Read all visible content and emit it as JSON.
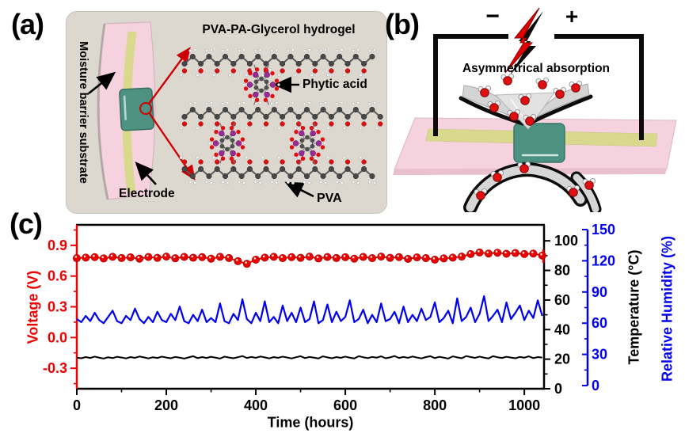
{
  "panel_a": {
    "label": "(a)",
    "title": "PVA-PA-Glycerol hydrogel",
    "substrate_label": "Moisture barrier substrate",
    "electrode_label": "Electrode",
    "phytic_label": "Phytic acid",
    "pva_label": "PVA"
  },
  "panel_b": {
    "label": "(b)",
    "minus": "−",
    "plus": "+",
    "absorption_label": "Asymmetrical absorption"
  },
  "panel_c": {
    "label": "(c)"
  },
  "colors": {
    "voltage_red": "#ee0000",
    "humidity_blue": "#0000ee",
    "temperature_black": "#000000",
    "substrate_pink": "#f6d2de",
    "electrode_yellow": "#d9d98e",
    "hydrogel_teal": "#4d9183",
    "panel_box_gray": "#dcd8d0",
    "arrow_red": "#cc0000"
  },
  "chart_data": {
    "type": "line",
    "title": "",
    "xlabel": "Time (hours)",
    "x_ticks": [
      0,
      200,
      400,
      600,
      800,
      1000
    ],
    "x_minor_ticks": [
      100,
      300,
      500,
      700,
      900
    ],
    "xlim": [
      0,
      1044
    ],
    "legend": "none",
    "grid": false,
    "axes": {
      "voltage": {
        "label": "Voltage (V)",
        "color": "#ee0000",
        "side": "left",
        "ticks": [
          -0.3,
          0.0,
          0.3,
          0.6,
          0.9
        ],
        "minor_ticks": [
          -0.45,
          -0.15,
          0.15,
          0.45,
          0.75,
          1.05
        ],
        "range": [
          -0.5,
          1.1
        ]
      },
      "temperature": {
        "label": "Temperature (°C)",
        "color": "#000000",
        "side": "right",
        "ticks": [
          0,
          20,
          40,
          60,
          80,
          100
        ],
        "minor_ticks": [
          10,
          30,
          50,
          70,
          90
        ],
        "range": [
          0,
          110.8
        ]
      },
      "humidity": {
        "label": "Relative Humidity (%)",
        "color": "#0000ee",
        "side": "right-offset",
        "ticks": [
          0,
          30,
          60,
          90,
          120,
          150
        ],
        "minor_ticks": [
          15,
          45,
          75,
          105,
          135
        ],
        "range": [
          0,
          150
        ]
      }
    },
    "series": [
      {
        "name": "Voltage",
        "axis": "voltage",
        "color": "#ee0000",
        "style": "scatter-line",
        "x_start": 0,
        "x_step": 20,
        "values": [
          0.775,
          0.78,
          0.785,
          0.772,
          0.788,
          0.776,
          0.783,
          0.77,
          0.786,
          0.778,
          0.79,
          0.774,
          0.787,
          0.779,
          0.785,
          0.77,
          0.788,
          0.776,
          0.745,
          0.72,
          0.76,
          0.78,
          0.788,
          0.775,
          0.785,
          0.778,
          0.79,
          0.772,
          0.786,
          0.776,
          0.784,
          0.77,
          0.787,
          0.775,
          0.79,
          0.778,
          0.785,
          0.768,
          0.782,
          0.775,
          0.76,
          0.772,
          0.78,
          0.79,
          0.815,
          0.83,
          0.82,
          0.828,
          0.818,
          0.825,
          0.815,
          0.82,
          0.8
        ],
        "end_bar": {
          "x": 1044,
          "low": 0.73,
          "high": 0.86
        }
      },
      {
        "name": "Relative Humidity",
        "axis": "humidity",
        "color": "#0000ee",
        "style": "line",
        "x_start": 0,
        "x_step": 10,
        "values": [
          64,
          61,
          67,
          62,
          70,
          63,
          60,
          66,
          72,
          62,
          60,
          67,
          63,
          74,
          64,
          60,
          66,
          61,
          71,
          63,
          61,
          69,
          63,
          76,
          62,
          60,
          68,
          62,
          73,
          61,
          65,
          61,
          79,
          62,
          60,
          69,
          63,
          83,
          64,
          60,
          70,
          62,
          81,
          61,
          66,
          60,
          77,
          62,
          70,
          61,
          75,
          61,
          64,
          81,
          60,
          63,
          78,
          61,
          71,
          62,
          66,
          82,
          61,
          64,
          73,
          60,
          68,
          61,
          79,
          62,
          64,
          71,
          60,
          76,
          61,
          68,
          62,
          74,
          63,
          66,
          80,
          61,
          65,
          72,
          60,
          84,
          62,
          66,
          75,
          61,
          69,
          86,
          62,
          67,
          73,
          61,
          80,
          64,
          70,
          77,
          63,
          72,
          65,
          82,
          67
        ]
      },
      {
        "name": "Temperature",
        "axis": "temperature",
        "color": "#000000",
        "style": "line",
        "x_start": 0,
        "x_step": 10,
        "values": [
          21,
          20.6,
          21.4,
          20.8,
          21.7,
          21,
          20.4,
          21.3,
          20.7,
          21.6,
          21.1,
          20.5,
          21.4,
          20.9,
          21.8,
          21.2,
          20.5,
          21.3,
          20.8,
          21.7,
          21.1,
          20.6,
          21.5,
          21,
          20.4,
          21.2,
          22,
          20.7,
          21.4,
          20.8,
          21.6,
          21,
          20.4,
          21.7,
          21.1,
          20.6,
          21.3,
          22.1,
          20.8,
          21.5,
          20.9,
          21.8,
          21.2,
          20.5,
          21.4,
          20.9,
          21.7,
          21.1,
          20.5,
          21.3,
          22,
          20.7,
          21.5,
          21,
          20.5,
          21.9,
          21.2,
          20.6,
          21.4,
          20.9,
          21.7,
          21,
          20.5,
          22,
          21.3,
          20.7,
          21.5,
          21,
          21.9,
          20.6,
          21.2,
          22.1,
          20.8,
          21.5,
          20.9,
          21.8,
          21.1,
          20.5,
          21.4,
          22,
          20.7,
          21.6,
          21,
          20.4,
          21.9,
          21.2,
          20.6,
          22.1,
          21.4,
          20.9,
          21.7,
          21,
          20.5,
          22,
          21.3,
          20.8,
          21.6,
          21.1,
          20.6,
          21.5,
          21,
          21.9,
          20.7,
          21.4,
          21.1
        ]
      }
    ]
  }
}
